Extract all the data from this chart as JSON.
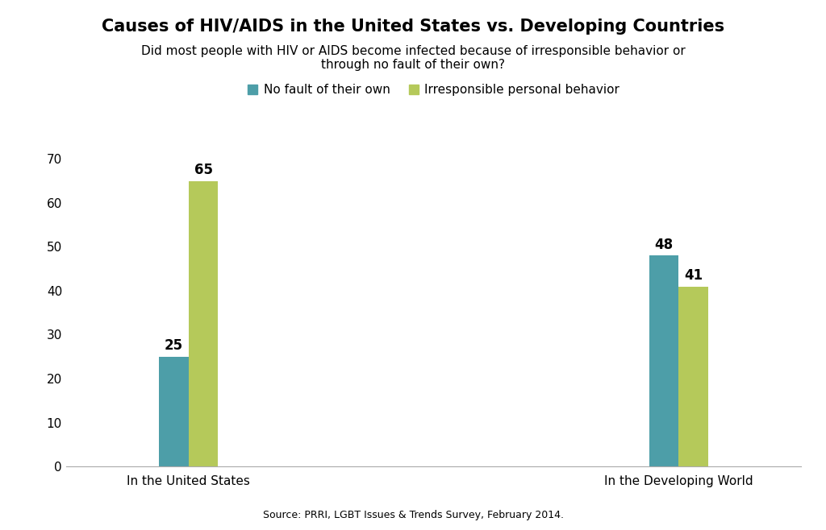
{
  "title": "Causes of HIV/AIDS in the United States vs. Developing Countries",
  "subtitle": "Did most people with HIV or AIDS become infected because of irresponsible behavior or\nthrough no fault of their own?",
  "source": "Source: PRRI, LGBT Issues & Trends Survey, February 2014.",
  "categories": [
    "In the United States",
    "In the Developing World"
  ],
  "series": [
    {
      "label": "No fault of their own",
      "color": "#4d9ea8",
      "values": [
        25,
        48
      ]
    },
    {
      "label": "Irresponsible personal behavior",
      "color": "#b5c95a",
      "values": [
        65,
        41
      ]
    }
  ],
  "ylim": [
    0,
    70
  ],
  "yticks": [
    0,
    10,
    20,
    30,
    40,
    50,
    60,
    70
  ],
  "bar_width": 0.12,
  "background_color": "#ffffff",
  "title_fontsize": 15,
  "subtitle_fontsize": 11,
  "label_fontsize": 11,
  "tick_fontsize": 11,
  "value_fontsize": 12,
  "source_fontsize": 9
}
